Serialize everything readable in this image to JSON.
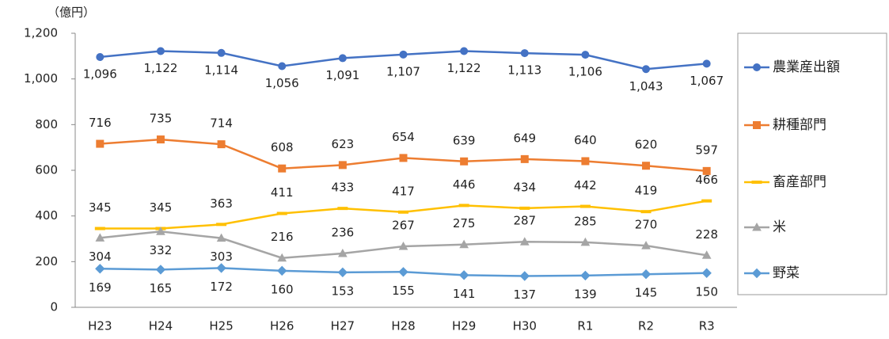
{
  "chart_data": {
    "type": "line",
    "unit_label": "（億円）",
    "categories": [
      "H23",
      "H24",
      "H25",
      "H26",
      "H27",
      "H28",
      "H29",
      "H30",
      "R1",
      "R2",
      "R3"
    ],
    "ylim": [
      0,
      1200
    ],
    "yticks": [
      0,
      200,
      400,
      600,
      800,
      {
        "value": 1000,
        "label": "1,000"
      },
      {
        "value": 1200,
        "label": "1,200"
      }
    ],
    "legend": "right",
    "series": [
      {
        "name": "農業産出額",
        "color": "#4472c4",
        "marker": "circle",
        "values": [
          1096,
          1122,
          1114,
          1056,
          1091,
          1107,
          1122,
          1113,
          1106,
          1043,
          1067
        ],
        "value_labels": [
          "1,096",
          "1,122",
          "1,114",
          "1,056",
          "1,091",
          "1,107",
          "1,122",
          "1,113",
          "1,106",
          "1,043",
          "1,067"
        ]
      },
      {
        "name": "耕種部門",
        "color": "#ed7d31",
        "marker": "square",
        "values": [
          716,
          735,
          714,
          608,
          623,
          654,
          639,
          649,
          640,
          620,
          597
        ]
      },
      {
        "name": "畜産部門",
        "color": "#ffc000",
        "marker": "dash",
        "values": [
          345,
          345,
          363,
          411,
          433,
          417,
          446,
          434,
          442,
          419,
          466
        ]
      },
      {
        "name": "米",
        "color": "#a5a5a5",
        "marker": "triangle",
        "values": [
          304,
          332,
          303,
          216,
          236,
          267,
          275,
          287,
          285,
          270,
          228
        ]
      },
      {
        "name": "野菜",
        "color": "#5b9bd5",
        "marker": "diamond",
        "values": [
          169,
          165,
          172,
          160,
          153,
          155,
          141,
          137,
          139,
          145,
          150
        ]
      }
    ]
  }
}
